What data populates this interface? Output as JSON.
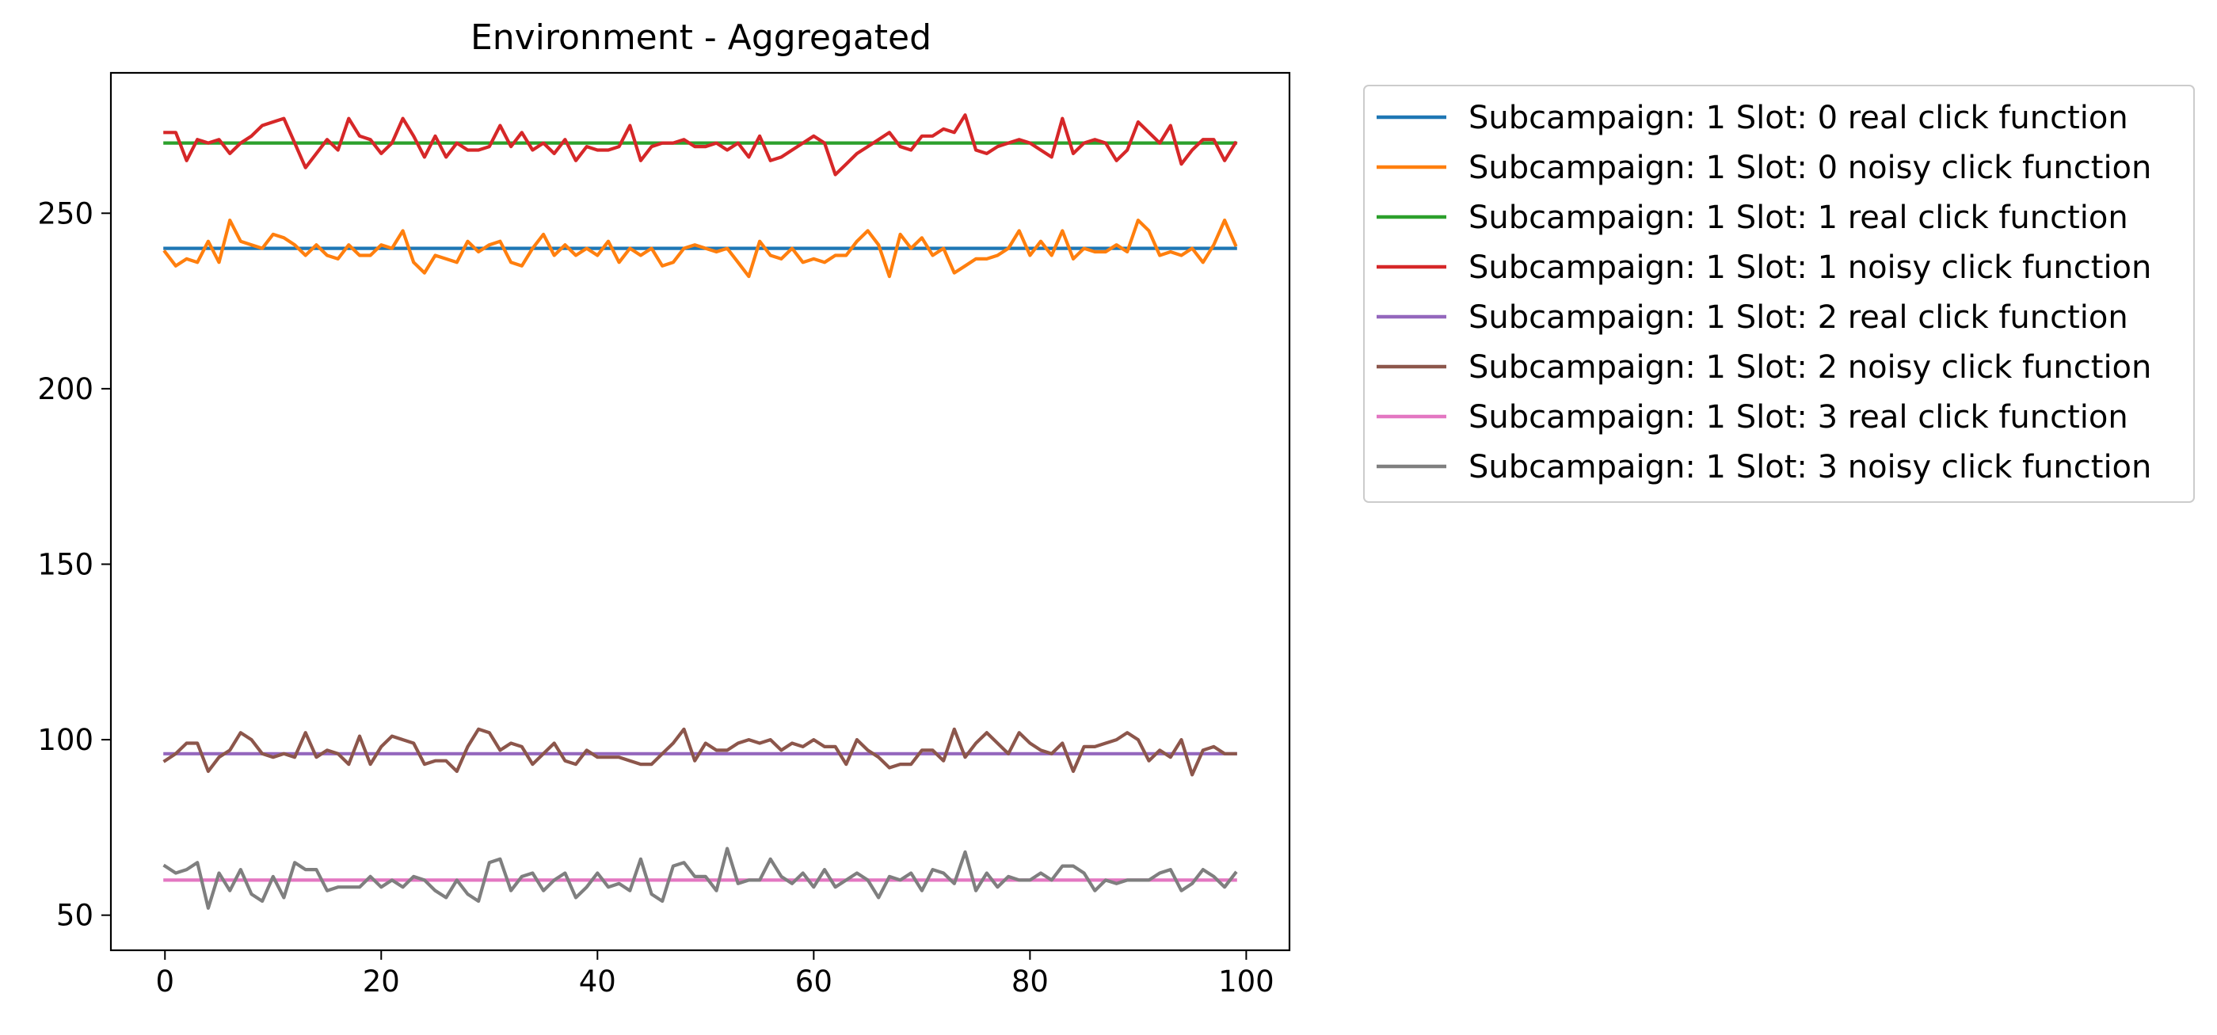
{
  "chart_data": {
    "type": "line",
    "title": "Environment - Aggregated",
    "xlabel": "",
    "ylabel": "",
    "xlim": [
      -5,
      104
    ],
    "ylim": [
      40,
      290
    ],
    "x_ticks": [
      0,
      20,
      40,
      60,
      80,
      100
    ],
    "y_ticks": [
      50,
      100,
      150,
      200,
      250
    ],
    "grid": false,
    "legend_position": "outside-top-right",
    "x": [
      0,
      1,
      2,
      3,
      4,
      5,
      6,
      7,
      8,
      9,
      10,
      11,
      12,
      13,
      14,
      15,
      16,
      17,
      18,
      19,
      20,
      21,
      22,
      23,
      24,
      25,
      26,
      27,
      28,
      29,
      30,
      31,
      32,
      33,
      34,
      35,
      36,
      37,
      38,
      39,
      40,
      41,
      42,
      43,
      44,
      45,
      46,
      47,
      48,
      49,
      50,
      51,
      52,
      53,
      54,
      55,
      56,
      57,
      58,
      59,
      60,
      61,
      62,
      63,
      64,
      65,
      66,
      67,
      68,
      69,
      70,
      71,
      72,
      73,
      74,
      75,
      76,
      77,
      78,
      79,
      80,
      81,
      82,
      83,
      84,
      85,
      86,
      87,
      88,
      89,
      90,
      91,
      92,
      93,
      94,
      95,
      96,
      97,
      98,
      99
    ],
    "series": [
      {
        "name": "Subcampaign: 1 Slot: 0 real click function",
        "color": "#1f77b4",
        "values": [
          240,
          240,
          240,
          240,
          240,
          240,
          240,
          240,
          240,
          240,
          240,
          240,
          240,
          240,
          240,
          240,
          240,
          240,
          240,
          240,
          240,
          240,
          240,
          240,
          240,
          240,
          240,
          240,
          240,
          240,
          240,
          240,
          240,
          240,
          240,
          240,
          240,
          240,
          240,
          240,
          240,
          240,
          240,
          240,
          240,
          240,
          240,
          240,
          240,
          240,
          240,
          240,
          240,
          240,
          240,
          240,
          240,
          240,
          240,
          240,
          240,
          240,
          240,
          240,
          240,
          240,
          240,
          240,
          240,
          240,
          240,
          240,
          240,
          240,
          240,
          240,
          240,
          240,
          240,
          240,
          240,
          240,
          240,
          240,
          240,
          240,
          240,
          240,
          240,
          240,
          240,
          240,
          240,
          240,
          240,
          240,
          240,
          240,
          240,
          240
        ]
      },
      {
        "name": "Subcampaign: 1 Slot: 0 noisy click function",
        "color": "#ff7f0e",
        "values": [
          239,
          235,
          237,
          236,
          242,
          236,
          248,
          242,
          241,
          240,
          244,
          243,
          241,
          238,
          241,
          238,
          237,
          241,
          238,
          238,
          241,
          240,
          245,
          236,
          233,
          238,
          237,
          236,
          242,
          239,
          241,
          242,
          236,
          235,
          240,
          244,
          238,
          241,
          238,
          240,
          238,
          242,
          236,
          240,
          238,
          240,
          235,
          236,
          240,
          241,
          240,
          239,
          240,
          236,
          232,
          242,
          238,
          237,
          240,
          236,
          237,
          236,
          238,
          238,
          242,
          245,
          241,
          232,
          244,
          240,
          243,
          238,
          240,
          233,
          235,
          237,
          237,
          238,
          240,
          245,
          238,
          242,
          238,
          245,
          237,
          240,
          239,
          239,
          241,
          239,
          248,
          245,
          238,
          239,
          238,
          240,
          236,
          241,
          248,
          241
        ]
      },
      {
        "name": "Subcampaign: 1 Slot: 1 real click function",
        "color": "#2ca02c",
        "values": [
          270,
          270,
          270,
          270,
          270,
          270,
          270,
          270,
          270,
          270,
          270,
          270,
          270,
          270,
          270,
          270,
          270,
          270,
          270,
          270,
          270,
          270,
          270,
          270,
          270,
          270,
          270,
          270,
          270,
          270,
          270,
          270,
          270,
          270,
          270,
          270,
          270,
          270,
          270,
          270,
          270,
          270,
          270,
          270,
          270,
          270,
          270,
          270,
          270,
          270,
          270,
          270,
          270,
          270,
          270,
          270,
          270,
          270,
          270,
          270,
          270,
          270,
          270,
          270,
          270,
          270,
          270,
          270,
          270,
          270,
          270,
          270,
          270,
          270,
          270,
          270,
          270,
          270,
          270,
          270,
          270,
          270,
          270,
          270,
          270,
          270,
          270,
          270,
          270,
          270,
          270,
          270,
          270,
          270,
          270,
          270,
          270,
          270,
          270,
          270
        ]
      },
      {
        "name": "Subcampaign: 1 Slot: 1 noisy click function",
        "color": "#d62728",
        "values": [
          273,
          273,
          265,
          271,
          270,
          271,
          267,
          270,
          272,
          275,
          276,
          277,
          270,
          263,
          267,
          271,
          268,
          277,
          272,
          271,
          267,
          270,
          277,
          272,
          266,
          272,
          266,
          270,
          268,
          268,
          269,
          275,
          269,
          273,
          268,
          270,
          267,
          271,
          265,
          269,
          268,
          268,
          269,
          275,
          265,
          269,
          270,
          270,
          271,
          269,
          269,
          270,
          268,
          270,
          266,
          272,
          265,
          266,
          268,
          270,
          272,
          270,
          261,
          264,
          267,
          269,
          271,
          273,
          269,
          268,
          272,
          272,
          274,
          273,
          278,
          268,
          267,
          269,
          270,
          271,
          270,
          268,
          266,
          277,
          267,
          270,
          271,
          270,
          265,
          268,
          276,
          273,
          270,
          275,
          264,
          268,
          271,
          271,
          265,
          270
        ]
      },
      {
        "name": "Subcampaign: 1 Slot: 2 real click function",
        "color": "#9467bd",
        "values": [
          96,
          96,
          96,
          96,
          96,
          96,
          96,
          96,
          96,
          96,
          96,
          96,
          96,
          96,
          96,
          96,
          96,
          96,
          96,
          96,
          96,
          96,
          96,
          96,
          96,
          96,
          96,
          96,
          96,
          96,
          96,
          96,
          96,
          96,
          96,
          96,
          96,
          96,
          96,
          96,
          96,
          96,
          96,
          96,
          96,
          96,
          96,
          96,
          96,
          96,
          96,
          96,
          96,
          96,
          96,
          96,
          96,
          96,
          96,
          96,
          96,
          96,
          96,
          96,
          96,
          96,
          96,
          96,
          96,
          96,
          96,
          96,
          96,
          96,
          96,
          96,
          96,
          96,
          96,
          96,
          96,
          96,
          96,
          96,
          96,
          96,
          96,
          96,
          96,
          96,
          96,
          96,
          96,
          96,
          96,
          96,
          96,
          96,
          96,
          96
        ]
      },
      {
        "name": "Subcampaign: 1 Slot: 2 noisy click function",
        "color": "#8c564b",
        "values": [
          94,
          96,
          99,
          99,
          91,
          95,
          97,
          102,
          100,
          96,
          95,
          96,
          95,
          102,
          95,
          97,
          96,
          93,
          101,
          93,
          98,
          101,
          100,
          99,
          93,
          94,
          94,
          91,
          98,
          103,
          102,
          97,
          99,
          98,
          93,
          96,
          99,
          94,
          93,
          97,
          95,
          95,
          95,
          94,
          93,
          93,
          96,
          99,
          103,
          94,
          99,
          97,
          97,
          99,
          100,
          99,
          100,
          97,
          99,
          98,
          100,
          98,
          98,
          93,
          100,
          97,
          95,
          92,
          93,
          93,
          97,
          97,
          94,
          103,
          95,
          99,
          102,
          99,
          96,
          102,
          99,
          97,
          96,
          99,
          91,
          98,
          98,
          99,
          100,
          102,
          100,
          94,
          97,
          95,
          100,
          90,
          97,
          98,
          96,
          96
        ]
      },
      {
        "name": "Subcampaign: 1 Slot: 3 real click function",
        "color": "#e377c2",
        "values": [
          60,
          60,
          60,
          60,
          60,
          60,
          60,
          60,
          60,
          60,
          60,
          60,
          60,
          60,
          60,
          60,
          60,
          60,
          60,
          60,
          60,
          60,
          60,
          60,
          60,
          60,
          60,
          60,
          60,
          60,
          60,
          60,
          60,
          60,
          60,
          60,
          60,
          60,
          60,
          60,
          60,
          60,
          60,
          60,
          60,
          60,
          60,
          60,
          60,
          60,
          60,
          60,
          60,
          60,
          60,
          60,
          60,
          60,
          60,
          60,
          60,
          60,
          60,
          60,
          60,
          60,
          60,
          60,
          60,
          60,
          60,
          60,
          60,
          60,
          60,
          60,
          60,
          60,
          60,
          60,
          60,
          60,
          60,
          60,
          60,
          60,
          60,
          60,
          60,
          60,
          60,
          60,
          60,
          60,
          60,
          60,
          60,
          60,
          60,
          60
        ]
      },
      {
        "name": "Subcampaign: 1 Slot: 3 noisy click function",
        "color": "#7f7f7f",
        "values": [
          64,
          62,
          63,
          65,
          52,
          62,
          57,
          63,
          56,
          54,
          61,
          55,
          65,
          63,
          63,
          57,
          58,
          58,
          58,
          61,
          58,
          60,
          58,
          61,
          60,
          57,
          55,
          60,
          56,
          54,
          65,
          66,
          57,
          61,
          62,
          57,
          60,
          62,
          55,
          58,
          62,
          58,
          59,
          57,
          66,
          56,
          54,
          64,
          65,
          61,
          61,
          57,
          69,
          59,
          60,
          60,
          66,
          61,
          59,
          62,
          58,
          63,
          58,
          60,
          62,
          60,
          55,
          61,
          60,
          62,
          57,
          63,
          62,
          59,
          68,
          57,
          62,
          58,
          61,
          60,
          60,
          62,
          60,
          64,
          64,
          62,
          57,
          60,
          59,
          60,
          60,
          60,
          62,
          63,
          57,
          59,
          63,
          61,
          58,
          62
        ]
      }
    ]
  }
}
